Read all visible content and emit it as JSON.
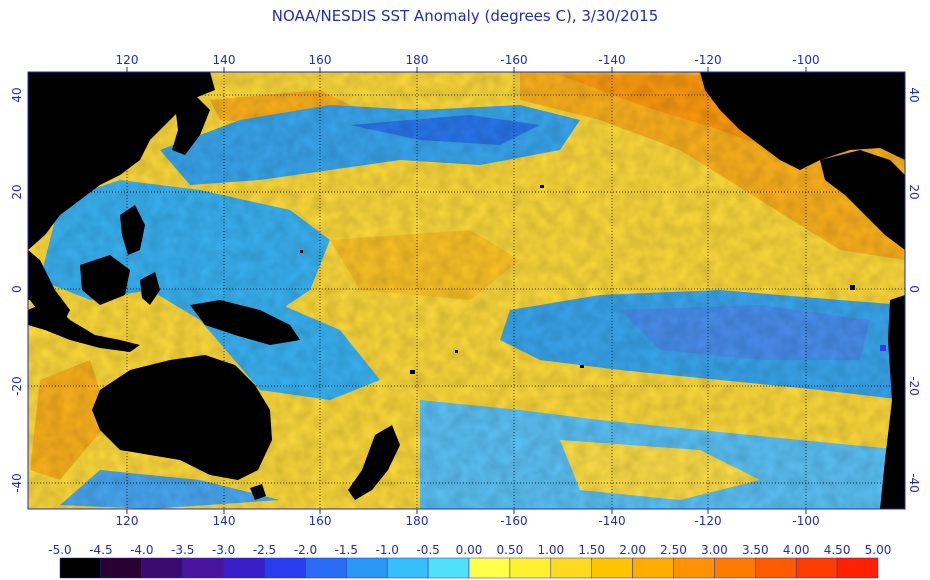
{
  "title": "NOAA/NESDIS SST Anomaly (degrees C), 3/30/2015",
  "lon_ticks": [
    "120",
    "140",
    "160",
    "180",
    "-160",
    "-140",
    "-120",
    "-100"
  ],
  "lat_ticks": [
    "40",
    "20",
    "0",
    "-20",
    "-40"
  ],
  "colorbar": {
    "labels": [
      "-5.0",
      "-4.5",
      "-4.0",
      "-3.5",
      "-3.0",
      "-2.5",
      "-2.0",
      "-1.5",
      "-1.0",
      "-0.5",
      "0.00",
      "0.50",
      "1.00",
      "1.50",
      "2.00",
      "2.50",
      "3.00",
      "3.50",
      "4.00",
      "4.50",
      "5.00"
    ],
    "colors": [
      "#000000",
      "#2a0033",
      "#3c0a6e",
      "#4a14a0",
      "#3a1ec8",
      "#2a3cf0",
      "#2a6cf5",
      "#2a96f8",
      "#35c0fa",
      "#4fe0fc",
      "#ffff4a",
      "#fff030",
      "#ffd820",
      "#ffc400",
      "#ffac00",
      "#ff9200",
      "#ff7a00",
      "#ff5a00",
      "#ff3c00",
      "#ff2000"
    ]
  },
  "colors": {
    "text": "#1f2fb0",
    "land": "#000000",
    "warm": "#ffd24a",
    "cool": "#3aa8f0"
  }
}
